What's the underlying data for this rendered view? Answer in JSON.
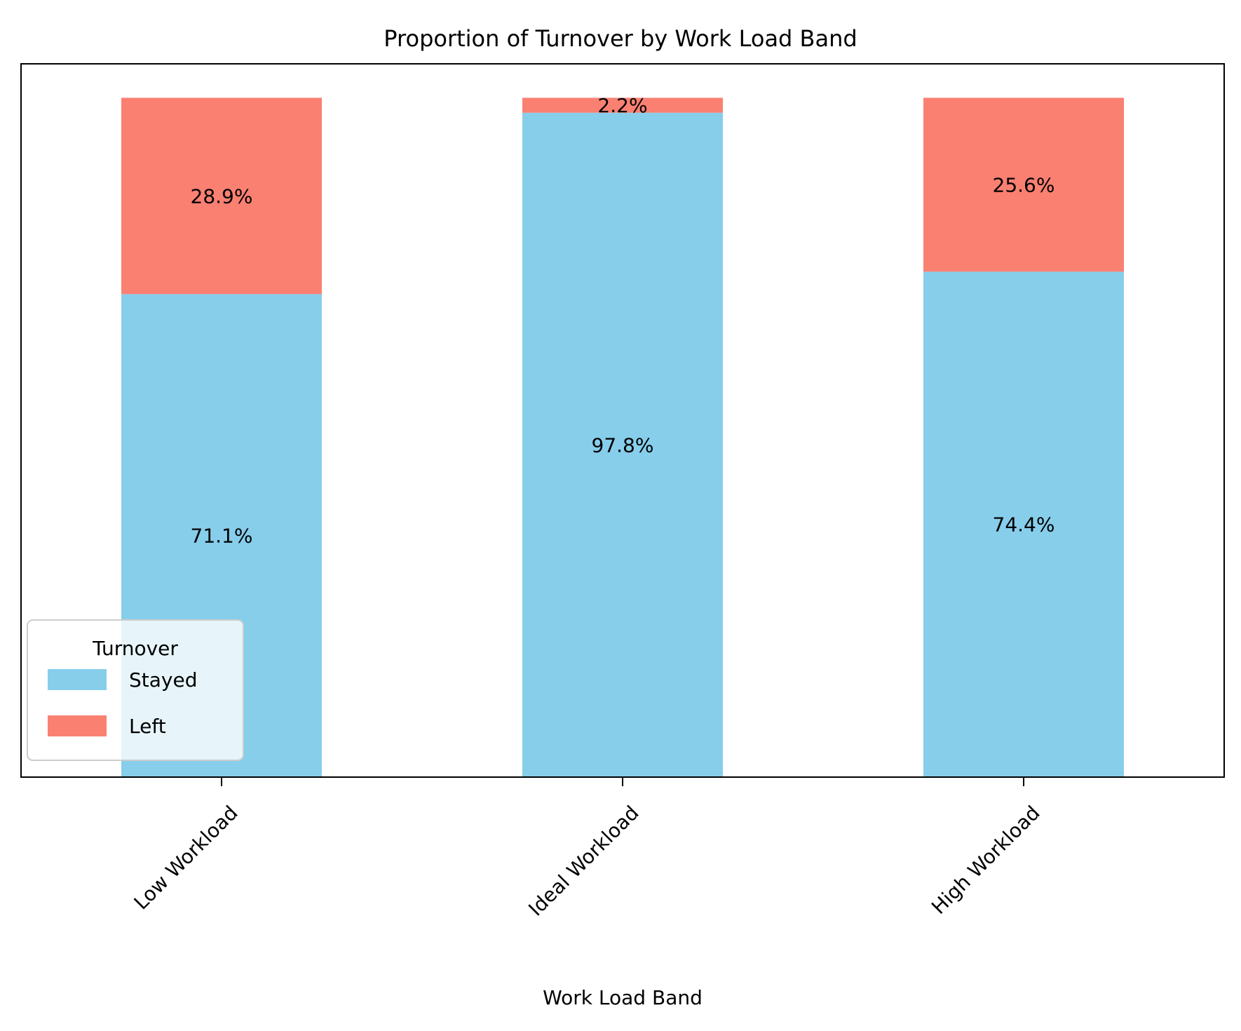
{
  "chart_data": {
    "type": "bar",
    "stacked": true,
    "title": "Proportion of Turnover by Work Load Band",
    "xlabel": "Work Load Band",
    "ylabel": "",
    "categories": [
      "Low Workload",
      "Ideal Workload",
      "High Workload"
    ],
    "ylim": [
      0,
      105
    ],
    "series": [
      {
        "name": "Stayed",
        "values": [
          71.1,
          97.8,
          74.4
        ],
        "labels": [
          "71.1%",
          "97.8%",
          "74.4%"
        ],
        "color": "#87CEEB"
      },
      {
        "name": "Left",
        "values": [
          28.9,
          2.2,
          25.6
        ],
        "labels": [
          "28.9%",
          "2.2%",
          "25.6%"
        ],
        "color": "#FA8072"
      }
    ],
    "legend": {
      "title": "Turnover",
      "position": "lower-left"
    },
    "grid": false,
    "y_ticks_visible": false
  }
}
